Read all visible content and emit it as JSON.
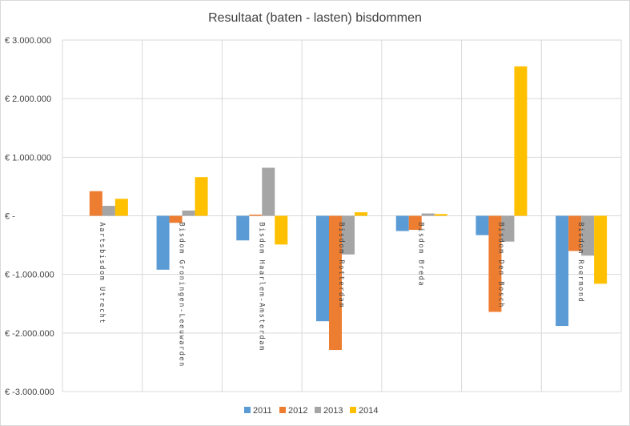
{
  "chart_data": {
    "type": "bar",
    "title": "Resultaat (baten - lasten) bisdommen",
    "xlabel": "",
    "ylabel": "",
    "ylim": [
      -3000000,
      3000000
    ],
    "yticks": [
      {
        "value": 3000000,
        "label": "€ 3.000.000"
      },
      {
        "value": 2000000,
        "label": "€ 2.000.000"
      },
      {
        "value": 1000000,
        "label": "€ 1.000.000"
      },
      {
        "value": 0,
        "label": "€ -"
      },
      {
        "value": -1000000,
        "label": "€ -1.000.000"
      },
      {
        "value": -2000000,
        "label": "€ -2.000.000"
      },
      {
        "value": -3000000,
        "label": "€ -3.000.000"
      }
    ],
    "categories": [
      "Aartsbisdom Utrecht",
      "Bisdom Groningen-Leeuwarden",
      "Bisdom Haarlem-Amsterdam",
      "Bisdom Rotterdam",
      "Bisdom Breda",
      "Bisdom Den Bosch",
      "Bisdom Roermond"
    ],
    "series": [
      {
        "name": "2011",
        "color": "#5b9bd5",
        "values": [
          0,
          -920000,
          -420000,
          -1800000,
          -260000,
          -330000,
          -1880000
        ]
      },
      {
        "name": "2012",
        "color": "#ed7d31",
        "values": [
          420000,
          -120000,
          20000,
          -2290000,
          -240000,
          -1640000,
          -600000
        ]
      },
      {
        "name": "2013",
        "color": "#a5a5a5",
        "values": [
          170000,
          90000,
          820000,
          -660000,
          40000,
          -440000,
          -680000
        ]
      },
      {
        "name": "2014",
        "color": "#ffc000",
        "values": [
          290000,
          660000,
          -490000,
          60000,
          30000,
          2550000,
          -1160000
        ]
      }
    ],
    "grid": true,
    "legend_position": "bottom"
  }
}
